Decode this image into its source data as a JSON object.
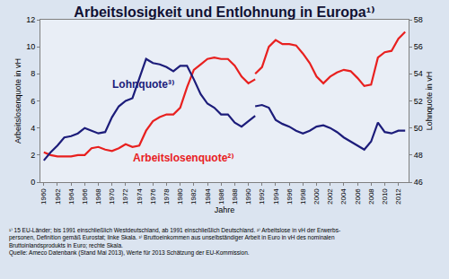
{
  "chart_data": {
    "type": "line",
    "title": "Arbeitslosigkeit und Entlohnung in Europa¹⁾",
    "x_label": "Jahre",
    "y_label": "Arbeitslosenquote in vH",
    "y2_label": "Lohnquote in vH",
    "x": [
      1960,
      1961,
      1962,
      1963,
      1964,
      1965,
      1966,
      1967,
      1968,
      1969,
      1970,
      1971,
      1972,
      1973,
      1974,
      1975,
      1976,
      1977,
      1978,
      1979,
      1980,
      1981,
      1982,
      1983,
      1984,
      1985,
      1986,
      1987,
      1988,
      1989,
      1990,
      1991,
      1991,
      1991,
      1992,
      1993,
      1994,
      1995,
      1996,
      1997,
      1998,
      1999,
      2000,
      2001,
      2002,
      2003,
      2004,
      2005,
      2006,
      2007,
      2008,
      2009,
      2010,
      2011,
      2012,
      2013
    ],
    "series": [
      {
        "name": "Arbeitslosenquote²⁾",
        "color": "#e8201f",
        "line_style": "solid",
        "values": [
          2.2,
          2.0,
          1.9,
          1.9,
          1.9,
          2.0,
          2.0,
          2.5,
          2.6,
          2.4,
          2.3,
          2.5,
          2.8,
          2.6,
          2.7,
          3.8,
          4.5,
          4.8,
          5.0,
          5.0,
          5.5,
          7.0,
          8.3,
          8.7,
          9.1,
          9.2,
          9.1,
          9.1,
          8.6,
          7.8,
          7.3,
          7.6,
          null,
          8.0,
          8.5,
          10.0,
          10.5,
          10.2,
          10.2,
          10.1,
          9.5,
          8.8,
          7.8,
          7.3,
          7.8,
          8.1,
          8.3,
          8.2,
          7.7,
          7.1,
          7.2,
          9.2,
          9.6,
          9.7,
          10.6,
          11.1
        ]
      },
      {
        "name": "Lohnquote³⁾",
        "color": "#1c1c7a",
        "line_style": "solid",
        "axis": "y2",
        "values": [
          47.6,
          48.2,
          48.7,
          49.3,
          49.4,
          49.6,
          50.0,
          49.8,
          49.6,
          49.7,
          50.8,
          51.6,
          52.0,
          52.2,
          53.6,
          55.1,
          54.8,
          54.7,
          54.5,
          54.2,
          54.6,
          54.6,
          53.6,
          52.5,
          51.8,
          51.5,
          51.0,
          51.0,
          50.4,
          50.1,
          50.5,
          50.9,
          null,
          51.6,
          51.7,
          51.5,
          50.6,
          50.3,
          50.1,
          49.8,
          49.6,
          49.8,
          50.1,
          50.2,
          50.0,
          49.7,
          49.3,
          49.0,
          48.7,
          48.4,
          49.0,
          50.4,
          49.7,
          49.6,
          49.8,
          49.8
        ]
      }
    ],
    "xlim": [
      1959.5,
      2013.5
    ],
    "xticks": [
      1960,
      1962,
      1964,
      1966,
      1968,
      1970,
      1972,
      1974,
      1976,
      1978,
      1980,
      1982,
      1984,
      1986,
      1988,
      1990,
      1992,
      1994,
      1996,
      1998,
      2000,
      2002,
      2004,
      2006,
      2008,
      2010,
      2012
    ],
    "ylim": [
      0,
      12
    ],
    "yticks": [
      0,
      2,
      4,
      6,
      8,
      10,
      12
    ],
    "y2lim": [
      46,
      58
    ],
    "y2ticks": [
      46,
      48,
      50,
      52,
      54,
      56,
      58
    ],
    "grid": false,
    "notes": [
      "¹⁾ 15 EU-Länder; bis 1991 einschließlich Westdeutschland, ab 1991 einschließlich Deutschland. ²⁾ Arbeitslose in vH der Erwerbs-",
      "personen, Definition gemäß Eurostat; linke Skala. ³⁾ Bruttoeinkommen aus unselbständiger Arbeit in Euro in vH des nominalen",
      "Bruttoinlandsprodukts in Euro; rechte Skala.",
      "Quelle: Ameco Datenbank (Stand Mai 2013), Werte für 2013 Schätzung der EU-Kommission."
    ]
  }
}
